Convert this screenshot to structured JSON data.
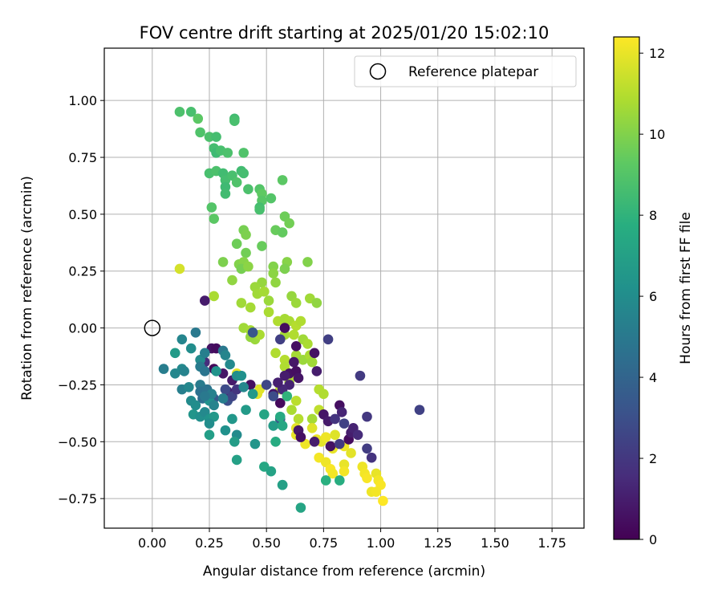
{
  "chart_data": {
    "type": "scatter",
    "title": "FOV centre drift starting at 2025/01/20 15:02:10",
    "xlabel": "Angular distance from reference (arcmin)",
    "ylabel": "Rotation from reference (arcmin)",
    "xlim": [
      -0.21,
      1.89
    ],
    "ylim": [
      -0.88,
      1.23
    ],
    "xticks": [
      0.0,
      0.25,
      0.5,
      0.75,
      1.0,
      1.25,
      1.5,
      1.75
    ],
    "xtick_labels": [
      "0.00",
      "0.25",
      "0.50",
      "0.75",
      "1.00",
      "1.25",
      "1.50",
      "1.75"
    ],
    "yticks": [
      -0.75,
      -0.5,
      -0.25,
      0.0,
      0.25,
      0.5,
      0.75,
      1.0
    ],
    "ytick_labels": [
      "−0.75",
      "−0.50",
      "−0.25",
      "0.00",
      "0.25",
      "0.50",
      "0.75",
      "1.00"
    ],
    "grid": true,
    "legend": {
      "position": "top-right",
      "entries": [
        "Reference platepar"
      ]
    },
    "reference_point": {
      "x": 0.0,
      "y": 0.0,
      "marker": "hollow-circle",
      "label": "Reference platepar"
    },
    "colorbar": {
      "label": "Hours from first FF file",
      "colormap": "viridis",
      "range": [
        0,
        12.4
      ],
      "ticks": [
        0,
        2,
        4,
        6,
        8,
        10,
        12
      ],
      "tick_labels": [
        "0",
        "2",
        "4",
        "6",
        "8",
        "10",
        "12"
      ]
    },
    "points": [
      {
        "x": 0.12,
        "y": 0.95,
        "c": 8.8
      },
      {
        "x": 0.17,
        "y": 0.95,
        "c": 8.7
      },
      {
        "x": 0.2,
        "y": 0.92,
        "c": 9.2
      },
      {
        "x": 0.21,
        "y": 0.86,
        "c": 8.9
      },
      {
        "x": 0.25,
        "y": 0.84,
        "c": 8.8
      },
      {
        "x": 0.28,
        "y": 0.84,
        "c": 8.6
      },
      {
        "x": 0.36,
        "y": 0.92,
        "c": 8.5
      },
      {
        "x": 0.36,
        "y": 0.91,
        "c": 8.7
      },
      {
        "x": 0.27,
        "y": 0.79,
        "c": 8.6
      },
      {
        "x": 0.28,
        "y": 0.77,
        "c": 8.4
      },
      {
        "x": 0.3,
        "y": 0.78,
        "c": 8.7
      },
      {
        "x": 0.33,
        "y": 0.77,
        "c": 8.8
      },
      {
        "x": 0.4,
        "y": 0.77,
        "c": 8.9
      },
      {
        "x": 0.25,
        "y": 0.68,
        "c": 8.7
      },
      {
        "x": 0.28,
        "y": 0.69,
        "c": 8.8
      },
      {
        "x": 0.31,
        "y": 0.68,
        "c": 8.5
      },
      {
        "x": 0.32,
        "y": 0.65,
        "c": 8.6
      },
      {
        "x": 0.32,
        "y": 0.62,
        "c": 8.4
      },
      {
        "x": 0.32,
        "y": 0.59,
        "c": 8.5
      },
      {
        "x": 0.35,
        "y": 0.67,
        "c": 8.7
      },
      {
        "x": 0.37,
        "y": 0.64,
        "c": 8.9
      },
      {
        "x": 0.39,
        "y": 0.69,
        "c": 8.5
      },
      {
        "x": 0.4,
        "y": 0.68,
        "c": 8.6
      },
      {
        "x": 0.42,
        "y": 0.61,
        "c": 8.8
      },
      {
        "x": 0.47,
        "y": 0.61,
        "c": 9.0
      },
      {
        "x": 0.48,
        "y": 0.59,
        "c": 9.3
      },
      {
        "x": 0.48,
        "y": 0.56,
        "c": 9.1
      },
      {
        "x": 0.47,
        "y": 0.53,
        "c": 8.6
      },
      {
        "x": 0.47,
        "y": 0.52,
        "c": 8.7
      },
      {
        "x": 0.52,
        "y": 0.57,
        "c": 9.0
      },
      {
        "x": 0.57,
        "y": 0.65,
        "c": 9.2
      },
      {
        "x": 0.26,
        "y": 0.53,
        "c": 9.0
      },
      {
        "x": 0.27,
        "y": 0.48,
        "c": 9.2
      },
      {
        "x": 0.58,
        "y": 0.49,
        "c": 9.6
      },
      {
        "x": 0.6,
        "y": 0.46,
        "c": 9.7
      },
      {
        "x": 0.54,
        "y": 0.43,
        "c": 9.5
      },
      {
        "x": 0.57,
        "y": 0.42,
        "c": 9.4
      },
      {
        "x": 0.4,
        "y": 0.43,
        "c": 9.8
      },
      {
        "x": 0.41,
        "y": 0.41,
        "c": 9.9
      },
      {
        "x": 0.37,
        "y": 0.37,
        "c": 9.6
      },
      {
        "x": 0.41,
        "y": 0.33,
        "c": 9.7
      },
      {
        "x": 0.48,
        "y": 0.36,
        "c": 9.5
      },
      {
        "x": 0.31,
        "y": 0.29,
        "c": 9.9
      },
      {
        "x": 0.38,
        "y": 0.28,
        "c": 10.0
      },
      {
        "x": 0.4,
        "y": 0.29,
        "c": 10.1
      },
      {
        "x": 0.39,
        "y": 0.26,
        "c": 9.8
      },
      {
        "x": 0.42,
        "y": 0.27,
        "c": 10.2
      },
      {
        "x": 0.35,
        "y": 0.21,
        "c": 10.3
      },
      {
        "x": 0.53,
        "y": 0.27,
        "c": 10.0
      },
      {
        "x": 0.53,
        "y": 0.24,
        "c": 10.2
      },
      {
        "x": 0.59,
        "y": 0.29,
        "c": 10.1
      },
      {
        "x": 0.58,
        "y": 0.26,
        "c": 9.9
      },
      {
        "x": 0.68,
        "y": 0.29,
        "c": 10.0
      },
      {
        "x": 0.54,
        "y": 0.2,
        "c": 10.3
      },
      {
        "x": 0.48,
        "y": 0.2,
        "c": 10.4
      },
      {
        "x": 0.45,
        "y": 0.18,
        "c": 10.5
      },
      {
        "x": 0.46,
        "y": 0.15,
        "c": 10.6
      },
      {
        "x": 0.49,
        "y": 0.16,
        "c": 10.7
      },
      {
        "x": 0.51,
        "y": 0.12,
        "c": 10.5
      },
      {
        "x": 0.39,
        "y": 0.11,
        "c": 10.6
      },
      {
        "x": 0.43,
        "y": 0.09,
        "c": 10.7
      },
      {
        "x": 0.27,
        "y": 0.14,
        "c": 10.8
      },
      {
        "x": 0.12,
        "y": 0.26,
        "c": 11.6
      },
      {
        "x": 0.61,
        "y": 0.14,
        "c": 10.4
      },
      {
        "x": 0.63,
        "y": 0.11,
        "c": 10.5
      },
      {
        "x": 0.69,
        "y": 0.13,
        "c": 10.6
      },
      {
        "x": 0.72,
        "y": 0.11,
        "c": 10.3
      },
      {
        "x": 0.51,
        "y": 0.07,
        "c": 10.8
      },
      {
        "x": 0.55,
        "y": 0.03,
        "c": 10.9
      },
      {
        "x": 0.58,
        "y": 0.04,
        "c": 10.7
      },
      {
        "x": 0.6,
        "y": 0.03,
        "c": 10.8
      },
      {
        "x": 0.63,
        "y": 0.01,
        "c": 11.0
      },
      {
        "x": 0.65,
        "y": 0.03,
        "c": 10.9
      },
      {
        "x": 0.4,
        "y": 0.0,
        "c": 10.6
      },
      {
        "x": 0.43,
        "y": -0.01,
        "c": 10.7
      },
      {
        "x": 0.45,
        "y": -0.05,
        "c": 10.5
      },
      {
        "x": 0.43,
        "y": -0.04,
        "c": 10.4
      },
      {
        "x": 0.47,
        "y": -0.03,
        "c": 10.8
      },
      {
        "x": 0.58,
        "y": -0.03,
        "c": 10.7
      },
      {
        "x": 0.62,
        "y": -0.03,
        "c": 10.9
      },
      {
        "x": 0.66,
        "y": -0.05,
        "c": 10.6
      },
      {
        "x": 0.68,
        "y": -0.07,
        "c": 10.8
      },
      {
        "x": 0.54,
        "y": -0.11,
        "c": 10.9
      },
      {
        "x": 0.58,
        "y": -0.14,
        "c": 11.0
      },
      {
        "x": 0.63,
        "y": -0.12,
        "c": 10.7
      },
      {
        "x": 0.66,
        "y": -0.14,
        "c": 10.5
      },
      {
        "x": 0.69,
        "y": -0.12,
        "c": 10.8
      },
      {
        "x": 0.7,
        "y": -0.15,
        "c": 10.6
      },
      {
        "x": 0.58,
        "y": -0.17,
        "c": 10.9
      },
      {
        "x": 0.61,
        "y": -0.21,
        "c": 11.1
      },
      {
        "x": 0.6,
        "y": -0.24,
        "c": 10.8
      },
      {
        "x": 0.56,
        "y": -0.27,
        "c": 11.2
      },
      {
        "x": 0.73,
        "y": -0.27,
        "c": 11.0
      },
      {
        "x": 0.75,
        "y": -0.29,
        "c": 10.9
      },
      {
        "x": 0.63,
        "y": -0.32,
        "c": 11.1
      },
      {
        "x": 0.61,
        "y": -0.36,
        "c": 10.8
      },
      {
        "x": 0.64,
        "y": -0.4,
        "c": 11.0
      },
      {
        "x": 0.7,
        "y": -0.4,
        "c": 10.7
      },
      {
        "x": 0.73,
        "y": -0.36,
        "c": 11.2
      },
      {
        "x": 0.47,
        "y": -0.27,
        "c": 11.8
      },
      {
        "x": 0.46,
        "y": -0.29,
        "c": 11.9
      },
      {
        "x": 0.37,
        "y": -0.2,
        "c": 12.0
      },
      {
        "x": 0.63,
        "y": -0.44,
        "c": 11.9
      },
      {
        "x": 0.63,
        "y": -0.47,
        "c": 12.0
      },
      {
        "x": 0.67,
        "y": -0.51,
        "c": 12.1
      },
      {
        "x": 0.7,
        "y": -0.44,
        "c": 11.8
      },
      {
        "x": 0.72,
        "y": -0.49,
        "c": 12.0
      },
      {
        "x": 0.74,
        "y": -0.5,
        "c": 11.9
      },
      {
        "x": 0.76,
        "y": -0.48,
        "c": 12.1
      },
      {
        "x": 0.73,
        "y": -0.57,
        "c": 12.2
      },
      {
        "x": 0.76,
        "y": -0.59,
        "c": 12.1
      },
      {
        "x": 0.78,
        "y": -0.62,
        "c": 12.3
      },
      {
        "x": 0.79,
        "y": -0.64,
        "c": 12.2
      },
      {
        "x": 0.84,
        "y": -0.6,
        "c": 12.0
      },
      {
        "x": 0.84,
        "y": -0.63,
        "c": 12.2
      },
      {
        "x": 0.87,
        "y": -0.55,
        "c": 11.9
      },
      {
        "x": 0.92,
        "y": -0.61,
        "c": 12.1
      },
      {
        "x": 0.93,
        "y": -0.64,
        "c": 12.2
      },
      {
        "x": 0.94,
        "y": -0.66,
        "c": 12.3
      },
      {
        "x": 0.98,
        "y": -0.64,
        "c": 12.0
      },
      {
        "x": 0.99,
        "y": -0.67,
        "c": 12.2
      },
      {
        "x": 1.0,
        "y": -0.69,
        "c": 12.3
      },
      {
        "x": 0.96,
        "y": -0.72,
        "c": 12.1
      },
      {
        "x": 0.98,
        "y": -0.72,
        "c": 12.2
      },
      {
        "x": 1.01,
        "y": -0.76,
        "c": 12.4
      },
      {
        "x": 0.79,
        "y": -0.53,
        "c": 12.0
      },
      {
        "x": 0.8,
        "y": -0.47,
        "c": 11.8
      },
      {
        "x": 0.84,
        "y": -0.52,
        "c": 12.1
      },
      {
        "x": 0.23,
        "y": 0.12,
        "c": 0.9
      },
      {
        "x": 0.58,
        "y": 0.0,
        "c": 0.4
      },
      {
        "x": 0.6,
        "y": -0.2,
        "c": 0.6
      },
      {
        "x": 0.62,
        "y": -0.15,
        "c": 0.8
      },
      {
        "x": 0.63,
        "y": -0.19,
        "c": 0.5
      },
      {
        "x": 0.64,
        "y": -0.22,
        "c": 0.7
      },
      {
        "x": 0.58,
        "y": -0.21,
        "c": 1.0
      },
      {
        "x": 0.6,
        "y": -0.25,
        "c": 1.2
      },
      {
        "x": 0.57,
        "y": -0.27,
        "c": 1.4
      },
      {
        "x": 0.55,
        "y": -0.24,
        "c": 1.1
      },
      {
        "x": 0.56,
        "y": -0.33,
        "c": 0.3
      },
      {
        "x": 0.53,
        "y": -0.29,
        "c": 0.7
      },
      {
        "x": 0.43,
        "y": -0.25,
        "c": 0.5
      },
      {
        "x": 0.35,
        "y": -0.23,
        "c": 0.9
      },
      {
        "x": 0.33,
        "y": -0.28,
        "c": 1.2
      },
      {
        "x": 0.23,
        "y": -0.15,
        "c": 1.6
      },
      {
        "x": 0.26,
        "y": -0.09,
        "c": 0.6
      },
      {
        "x": 0.28,
        "y": -0.09,
        "c": 0.4
      },
      {
        "x": 0.27,
        "y": -0.18,
        "c": 0.2
      },
      {
        "x": 0.31,
        "y": -0.2,
        "c": 0.7
      },
      {
        "x": 0.64,
        "y": -0.45,
        "c": 0.8
      },
      {
        "x": 0.65,
        "y": -0.48,
        "c": 0.5
      },
      {
        "x": 0.71,
        "y": -0.5,
        "c": 1.0
      },
      {
        "x": 0.75,
        "y": -0.38,
        "c": 0.7
      },
      {
        "x": 0.77,
        "y": -0.41,
        "c": 0.9
      },
      {
        "x": 0.78,
        "y": -0.52,
        "c": 0.6
      },
      {
        "x": 0.82,
        "y": -0.34,
        "c": 0.5
      },
      {
        "x": 0.83,
        "y": -0.37,
        "c": 1.3
      },
      {
        "x": 0.86,
        "y": -0.49,
        "c": 0.4
      },
      {
        "x": 0.87,
        "y": -0.46,
        "c": 1.0
      },
      {
        "x": 0.88,
        "y": -0.44,
        "c": 1.2
      },
      {
        "x": 0.56,
        "y": -0.4,
        "c": 0.8
      },
      {
        "x": 0.63,
        "y": -0.08,
        "c": 0.5
      },
      {
        "x": 0.71,
        "y": -0.11,
        "c": 0.6
      },
      {
        "x": 0.72,
        "y": -0.19,
        "c": 1.0
      },
      {
        "x": 0.77,
        "y": -0.05,
        "c": 2.3
      },
      {
        "x": 0.91,
        "y": -0.21,
        "c": 2.1
      },
      {
        "x": 1.17,
        "y": -0.36,
        "c": 2.4
      },
      {
        "x": 0.94,
        "y": -0.39,
        "c": 2.0
      },
      {
        "x": 0.94,
        "y": -0.53,
        "c": 2.2
      },
      {
        "x": 0.96,
        "y": -0.57,
        "c": 1.8
      },
      {
        "x": 0.82,
        "y": -0.51,
        "c": 2.1
      },
      {
        "x": 0.56,
        "y": -0.05,
        "c": 2.3
      },
      {
        "x": 0.5,
        "y": -0.25,
        "c": 2.6
      },
      {
        "x": 0.44,
        "y": -0.02,
        "c": 3.3
      },
      {
        "x": 0.32,
        "y": -0.27,
        "c": 2.8
      },
      {
        "x": 0.33,
        "y": -0.32,
        "c": 3.0
      },
      {
        "x": 0.35,
        "y": -0.3,
        "c": 2.5
      },
      {
        "x": 0.27,
        "y": -0.31,
        "c": 3.5
      },
      {
        "x": 0.53,
        "y": -0.3,
        "c": 2.9
      },
      {
        "x": 0.56,
        "y": -0.4,
        "c": 3.1
      },
      {
        "x": 0.8,
        "y": -0.4,
        "c": 1.9
      },
      {
        "x": 0.84,
        "y": -0.42,
        "c": 2.4
      },
      {
        "x": 0.37,
        "y": -0.27,
        "c": 1.9
      },
      {
        "x": 0.9,
        "y": -0.47,
        "c": 1.5
      },
      {
        "x": 0.1,
        "y": -0.11,
        "c": 6.7
      },
      {
        "x": 0.13,
        "y": -0.05,
        "c": 5.6
      },
      {
        "x": 0.19,
        "y": -0.02,
        "c": 5.0
      },
      {
        "x": 0.05,
        "y": -0.18,
        "c": 5.2
      },
      {
        "x": 0.1,
        "y": -0.2,
        "c": 5.7
      },
      {
        "x": 0.13,
        "y": -0.18,
        "c": 5.8
      },
      {
        "x": 0.14,
        "y": -0.19,
        "c": 5.5
      },
      {
        "x": 0.17,
        "y": -0.09,
        "c": 6.0
      },
      {
        "x": 0.21,
        "y": -0.14,
        "c": 5.9
      },
      {
        "x": 0.23,
        "y": -0.11,
        "c": 5.3
      },
      {
        "x": 0.21,
        "y": -0.17,
        "c": 5.1
      },
      {
        "x": 0.23,
        "y": -0.19,
        "c": 4.8
      },
      {
        "x": 0.31,
        "y": -0.1,
        "c": 5.0
      },
      {
        "x": 0.32,
        "y": -0.12,
        "c": 5.6
      },
      {
        "x": 0.34,
        "y": -0.16,
        "c": 5.8
      },
      {
        "x": 0.37,
        "y": -0.21,
        "c": 6.0
      },
      {
        "x": 0.39,
        "y": -0.21,
        "c": 6.2
      },
      {
        "x": 0.28,
        "y": -0.19,
        "c": 6.3
      },
      {
        "x": 0.13,
        "y": -0.27,
        "c": 5.3
      },
      {
        "x": 0.16,
        "y": -0.26,
        "c": 5.7
      },
      {
        "x": 0.17,
        "y": -0.32,
        "c": 5.9
      },
      {
        "x": 0.21,
        "y": -0.25,
        "c": 5.1
      },
      {
        "x": 0.21,
        "y": -0.28,
        "c": 4.6
      },
      {
        "x": 0.22,
        "y": -0.31,
        "c": 4.4
      },
      {
        "x": 0.24,
        "y": -0.27,
        "c": 4.7
      },
      {
        "x": 0.25,
        "y": -0.32,
        "c": 6.2
      },
      {
        "x": 0.26,
        "y": -0.29,
        "c": 5.4
      },
      {
        "x": 0.23,
        "y": -0.3,
        "c": 5.0
      },
      {
        "x": 0.19,
        "y": -0.34,
        "c": 6.0
      },
      {
        "x": 0.18,
        "y": -0.38,
        "c": 6.4
      },
      {
        "x": 0.21,
        "y": -0.39,
        "c": 6.1
      },
      {
        "x": 0.23,
        "y": -0.37,
        "c": 5.8
      },
      {
        "x": 0.25,
        "y": -0.4,
        "c": 6.3
      },
      {
        "x": 0.27,
        "y": -0.39,
        "c": 6.6
      },
      {
        "x": 0.25,
        "y": -0.42,
        "c": 6.0
      },
      {
        "x": 0.27,
        "y": -0.34,
        "c": 5.5
      },
      {
        "x": 0.31,
        "y": -0.31,
        "c": 5.2
      },
      {
        "x": 0.32,
        "y": -0.45,
        "c": 6.2
      },
      {
        "x": 0.35,
        "y": -0.4,
        "c": 6.5
      },
      {
        "x": 0.37,
        "y": -0.47,
        "c": 5.9
      },
      {
        "x": 0.36,
        "y": -0.5,
        "c": 6.8
      },
      {
        "x": 0.37,
        "y": -0.58,
        "c": 7.0
      },
      {
        "x": 0.25,
        "y": -0.47,
        "c": 6.9
      },
      {
        "x": 0.4,
        "y": -0.26,
        "c": 5.7
      },
      {
        "x": 0.41,
        "y": -0.36,
        "c": 6.7
      },
      {
        "x": 0.44,
        "y": -0.29,
        "c": 6.6
      },
      {
        "x": 0.45,
        "y": -0.51,
        "c": 6.4
      },
      {
        "x": 0.49,
        "y": -0.38,
        "c": 7.2
      },
      {
        "x": 0.49,
        "y": -0.61,
        "c": 7.4
      },
      {
        "x": 0.52,
        "y": -0.63,
        "c": 7.1
      },
      {
        "x": 0.53,
        "y": -0.43,
        "c": 6.8
      },
      {
        "x": 0.54,
        "y": -0.5,
        "c": 7.6
      },
      {
        "x": 0.57,
        "y": -0.43,
        "c": 7.3
      },
      {
        "x": 0.57,
        "y": -0.69,
        "c": 6.9
      },
      {
        "x": 0.57,
        "y": -0.69,
        "c": 7.0
      },
      {
        "x": 0.65,
        "y": -0.79,
        "c": 7.2
      },
      {
        "x": 0.76,
        "y": -0.67,
        "c": 7.8
      },
      {
        "x": 0.82,
        "y": -0.67,
        "c": 7.7
      },
      {
        "x": 0.59,
        "y": -0.3,
        "c": 8.0
      },
      {
        "x": 0.56,
        "y": -0.39,
        "c": 7.5
      }
    ]
  }
}
